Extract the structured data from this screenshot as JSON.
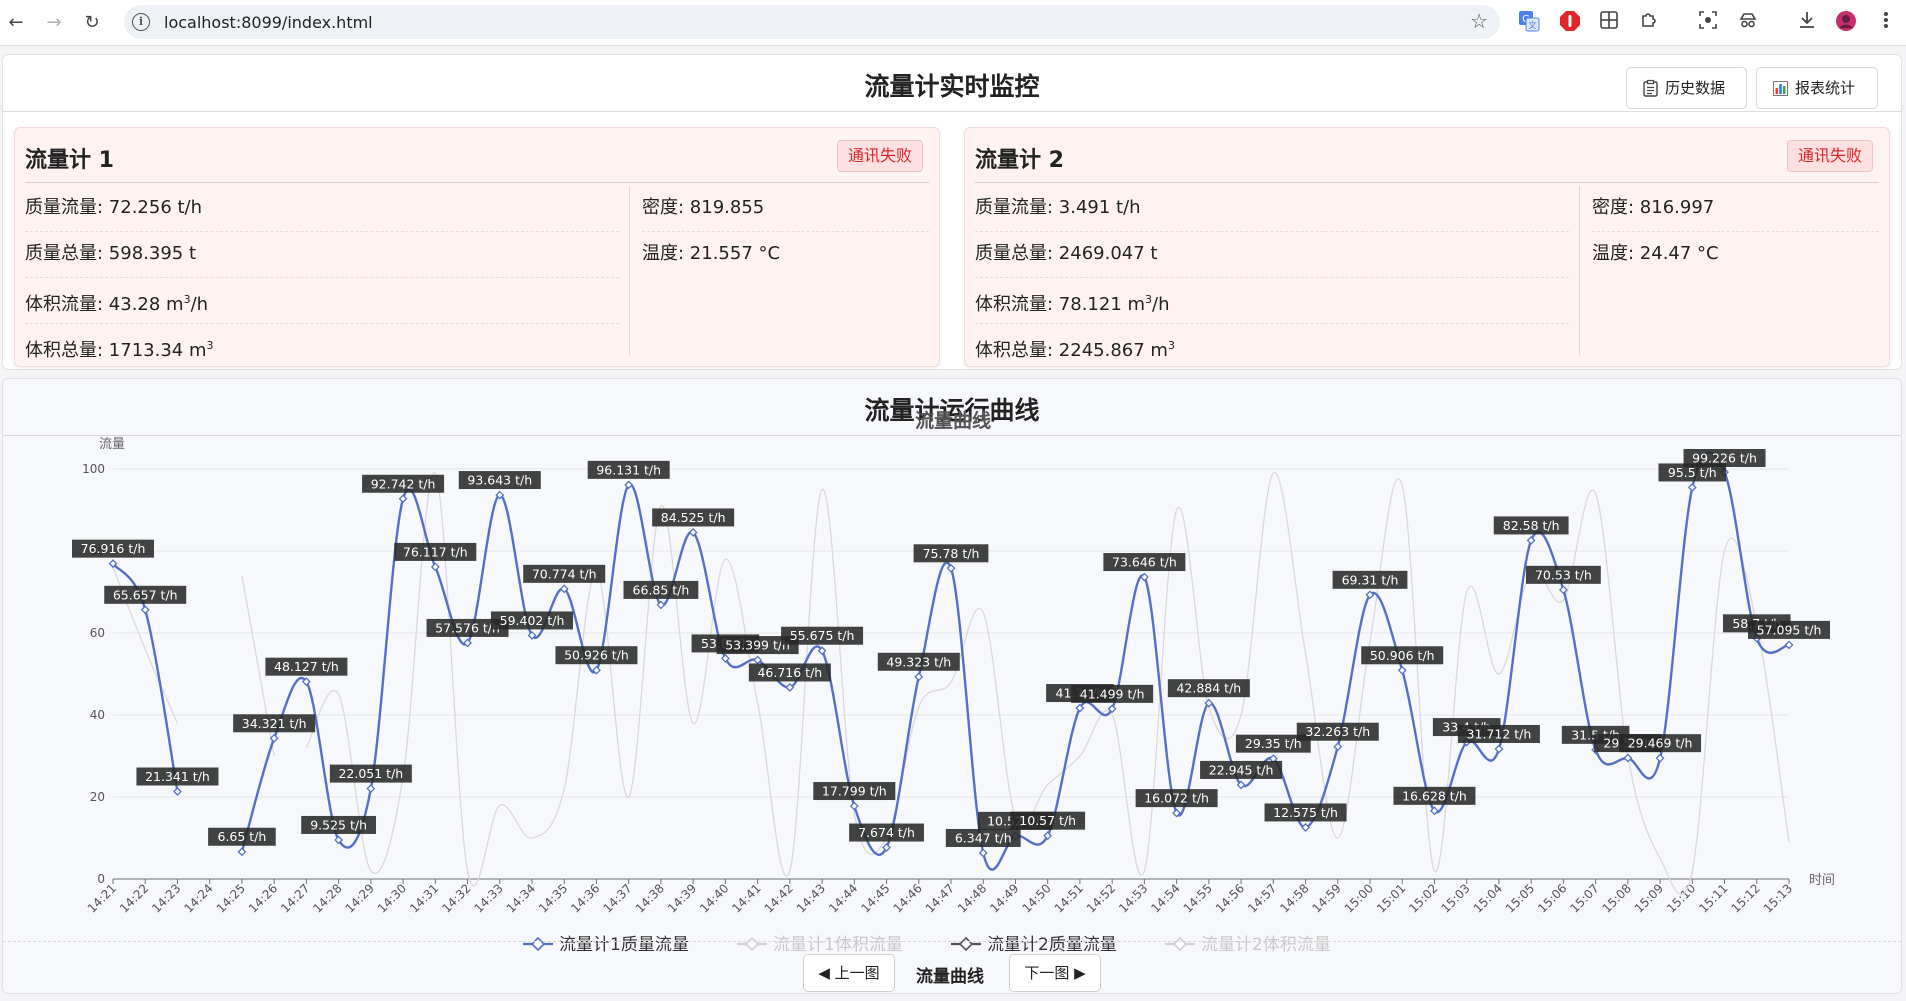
{
  "browser": {
    "url": "localhost:8099/index.html",
    "extensions": [
      "translate-icon",
      "adblock-icon",
      "grid-extension-icon",
      "puzzle-icon",
      "screenshot-icon",
      "spy-icon",
      "download-icon",
      "avatar-icon",
      "menu-kebab-icon"
    ]
  },
  "header": {
    "title": "流量计实时监控",
    "history_button": "历史数据",
    "report_button": "报表统计"
  },
  "meters": [
    {
      "name": "流量计 1",
      "status": "通讯失败",
      "mass_flow": "质量流量: 72.256 t/h",
      "mass_total": "质量总量: 598.395 t",
      "volume_flow": "体积流量: 43.28 m",
      "volume_total": "体积总量: 1713.34 m",
      "density": "密度: 819.855",
      "temperature": "温度: 21.557 °C"
    },
    {
      "name": "流量计 2",
      "status": "通讯失败",
      "mass_flow": "质量流量: 3.491 t/h",
      "mass_total": "质量总量: 2469.047 t",
      "volume_flow": "体积流量: 78.121 m",
      "volume_total": "体积总量: 2245.867 m",
      "density": "密度: 816.997",
      "temperature": "温度: 24.47 °C"
    }
  ],
  "units": {
    "cube_sup": "3",
    "flow_suffix": "/h"
  },
  "chart_section": {
    "title": "流量计运行曲线",
    "prev_button": "◀ 上一图",
    "current_label": "流量曲线",
    "next_button": "下一图 ▶"
  },
  "chart_data": {
    "type": "line",
    "title": "流量曲线",
    "ylabel": "流量",
    "xlabel": "时间",
    "ylim": [
      0,
      100
    ],
    "yticks": [
      0,
      20,
      40,
      60,
      80,
      100
    ],
    "grid": true,
    "legend_position": "bottom",
    "x": [
      "14:21",
      "14:22",
      "14:23",
      "14:24",
      "14:25",
      "14:26",
      "14:27",
      "14:28",
      "14:29",
      "14:30",
      "14:31",
      "14:32",
      "14:33",
      "14:34",
      "14:35",
      "14:36",
      "14:37",
      "14:38",
      "14:39",
      "14:40",
      "14:41",
      "14:42",
      "14:43",
      "14:44",
      "14:45",
      "14:46",
      "14:47",
      "14:48",
      "14:49",
      "14:50",
      "14:51",
      "14:52",
      "14:53",
      "14:54",
      "14:55",
      "14:56",
      "14:57",
      "14:58",
      "14:59",
      "15:00",
      "15:01",
      "15:02",
      "15:03",
      "15:04",
      "15:05",
      "15:06",
      "15:07",
      "15:08",
      "15:09",
      "15:10",
      "15:11",
      "15:12",
      "15:13"
    ],
    "series": [
      {
        "name": "流量计1质量流量",
        "color": "#5470c6",
        "active": true,
        "unit": "t/h",
        "values": [
          76.916,
          65.657,
          21.341,
          null,
          6.65,
          34.321,
          48.127,
          9.525,
          22.051,
          92.742,
          76.117,
          57.576,
          93.643,
          59.402,
          70.774,
          50.926,
          96.131,
          66.85,
          84.525,
          53.8,
          53.399,
          46.716,
          55.675,
          17.799,
          7.674,
          49.323,
          75.78,
          6.347,
          10.52,
          10.57,
          41.7,
          41.499,
          73.646,
          16.072,
          42.884,
          22.945,
          29.35,
          12.575,
          32.263,
          69.31,
          50.906,
          16.628,
          33.4,
          31.712,
          82.58,
          70.53,
          31.5,
          29.5,
          29.469,
          95.5,
          99.226,
          58.7,
          57.095
        ]
      },
      {
        "name": "流量计1体积流量",
        "color": "#cccccc",
        "active": false,
        "values": [
          null,
          null,
          null,
          null,
          74,
          30,
          null,
          null,
          null,
          null,
          null,
          null,
          null,
          null,
          null,
          null,
          null,
          null,
          null,
          null,
          null,
          null,
          null,
          null,
          null,
          null,
          null,
          null,
          null,
          null,
          null,
          null,
          null,
          null,
          null,
          null,
          null,
          null,
          null,
          null,
          null,
          null,
          null,
          null,
          null,
          null,
          null,
          null,
          null,
          null,
          null,
          null,
          null
        ]
      },
      {
        "name": "流量计2质量流量",
        "color": "#333333",
        "active": false,
        "values": [
          null,
          null,
          null,
          null,
          null,
          null,
          null,
          null,
          null,
          null,
          null,
          null,
          null,
          null,
          null,
          null,
          null,
          null,
          null,
          null,
          null,
          null,
          null,
          null,
          null,
          null,
          null,
          null,
          null,
          null,
          null,
          null,
          null,
          null,
          null,
          null,
          null,
          null,
          null,
          null,
          null,
          null,
          null,
          null,
          null,
          null,
          null,
          null,
          null,
          null,
          null,
          null,
          null
        ]
      },
      {
        "name": "流量计2体积流量",
        "color": "#cccccc",
        "active": false,
        "values": [
          76,
          56,
          38,
          null,
          null,
          null,
          32,
          45,
          2,
          25,
          99,
          2,
          18,
          10,
          22,
          75,
          20,
          91,
          38,
          78,
          43,
          2,
          95,
          16,
          10,
          42,
          48,
          65,
          15,
          23,
          30,
          40,
          2,
          90,
          42,
          40,
          99,
          55,
          10,
          58,
          96,
          2,
          70,
          50,
          75,
          68,
          94,
          30,
          5,
          2,
          80,
          62,
          9
        ]
      }
    ]
  }
}
